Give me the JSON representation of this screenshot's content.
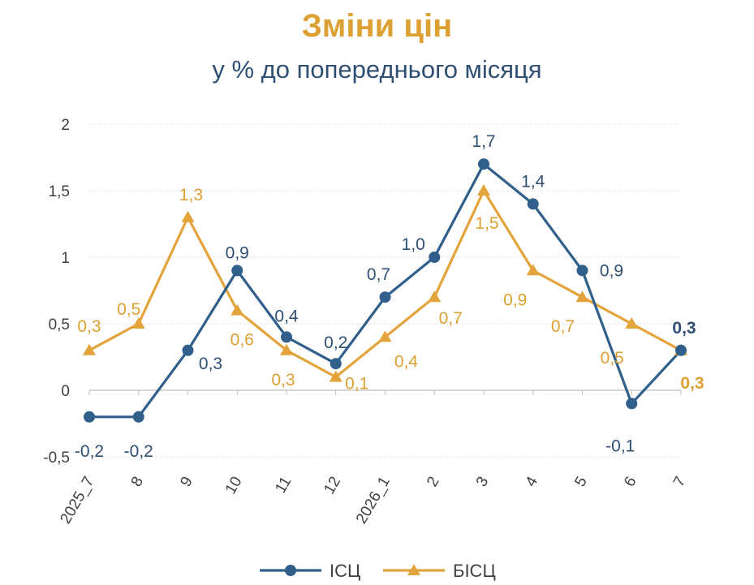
{
  "chart_data": {
    "type": "line",
    "title": "Зміни цін",
    "subtitle": "у % до попереднього місяця",
    "categories": [
      "2025_7",
      "8",
      "9",
      "10",
      "11",
      "12",
      "2026_1",
      "2",
      "3",
      "4",
      "5",
      "6",
      "7"
    ],
    "y_ticks": [
      "2",
      "1,5",
      "1",
      "0,5",
      "0",
      "-0,5"
    ],
    "ylim": [
      -0.5,
      2
    ],
    "grid": true,
    "legend": "bottom",
    "series": [
      {
        "name": "ІСЦ",
        "color": "#2F5F8A",
        "marker": "circle",
        "values": [
          -0.2,
          -0.2,
          0.3,
          0.9,
          0.4,
          0.2,
          0.7,
          1.0,
          1.7,
          1.4,
          0.9,
          -0.1,
          0.3
        ],
        "labels": [
          "-0,2",
          "-0,2",
          "0,3",
          "0,9",
          "0,4",
          "0,2",
          "0,7",
          "1,0",
          "1,7",
          "1,4",
          "0,9",
          "-0,1",
          "0,3"
        ]
      },
      {
        "name": "БІСЦ",
        "color": "#E3A43C",
        "marker": "triangle",
        "values": [
          0.3,
          0.5,
          1.3,
          0.6,
          0.3,
          0.1,
          0.4,
          0.7,
          1.5,
          0.9,
          0.7,
          0.5,
          0.3
        ],
        "labels": [
          "0,3",
          "0,5",
          "1,3",
          "0,6",
          "0,3",
          "0,1",
          "0,4",
          "0,7",
          "1,5",
          "0,9",
          "0,7",
          "0,5",
          "0,3"
        ]
      }
    ]
  }
}
